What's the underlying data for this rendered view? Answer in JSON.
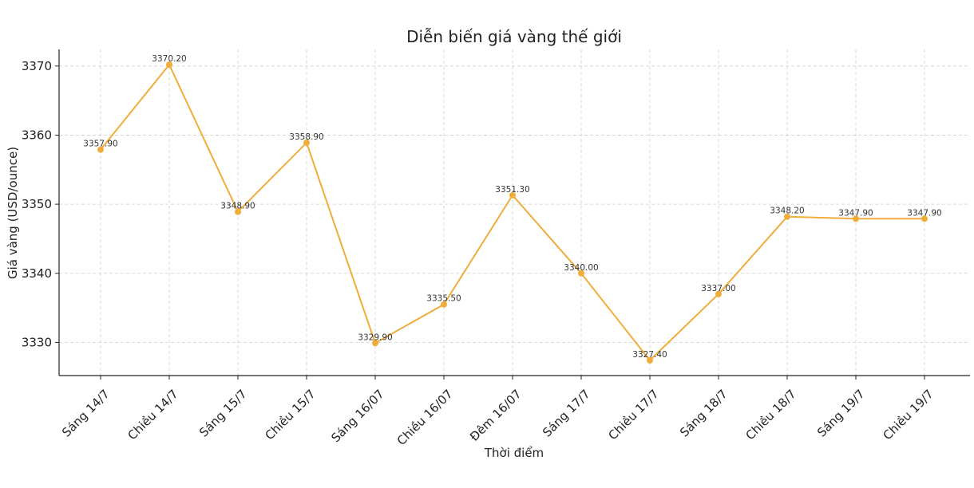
{
  "chart_data": {
    "type": "line",
    "title": "Diễn biến giá vàng thế giới",
    "xlabel": "Thời điểm",
    "ylabel": "Giá vàng (USD/ounce)",
    "categories": [
      "Sáng 14/7",
      "Chiều 14/7",
      "Sáng 15/7",
      "Chiều 15/7",
      "Sáng 16/07",
      "Chiều 16/07",
      "Đêm 16/07",
      "Sáng 17/7",
      "Chiều 17/7",
      "Sáng 18/7",
      "Chiều 18/7",
      "Sáng 19/7",
      "Chiều 19/7"
    ],
    "values": [
      3357.9,
      3370.2,
      3348.9,
      3358.9,
      3329.9,
      3335.5,
      3351.3,
      3340.0,
      3327.4,
      3337.0,
      3348.2,
      3347.9,
      3347.9
    ],
    "value_labels": [
      "3357.90",
      "3370.20",
      "3348.90",
      "3358.90",
      "3329.90",
      "3335.50",
      "3351.30",
      "3340.00",
      "3327.40",
      "3337.00",
      "3348.20",
      "3347.90",
      "3347.90"
    ],
    "yticks": [
      3330,
      3340,
      3350,
      3360,
      3370
    ],
    "ylim": [
      3325.2,
      3372.4
    ],
    "grid": true,
    "line_color": "#f0ad3c"
  }
}
